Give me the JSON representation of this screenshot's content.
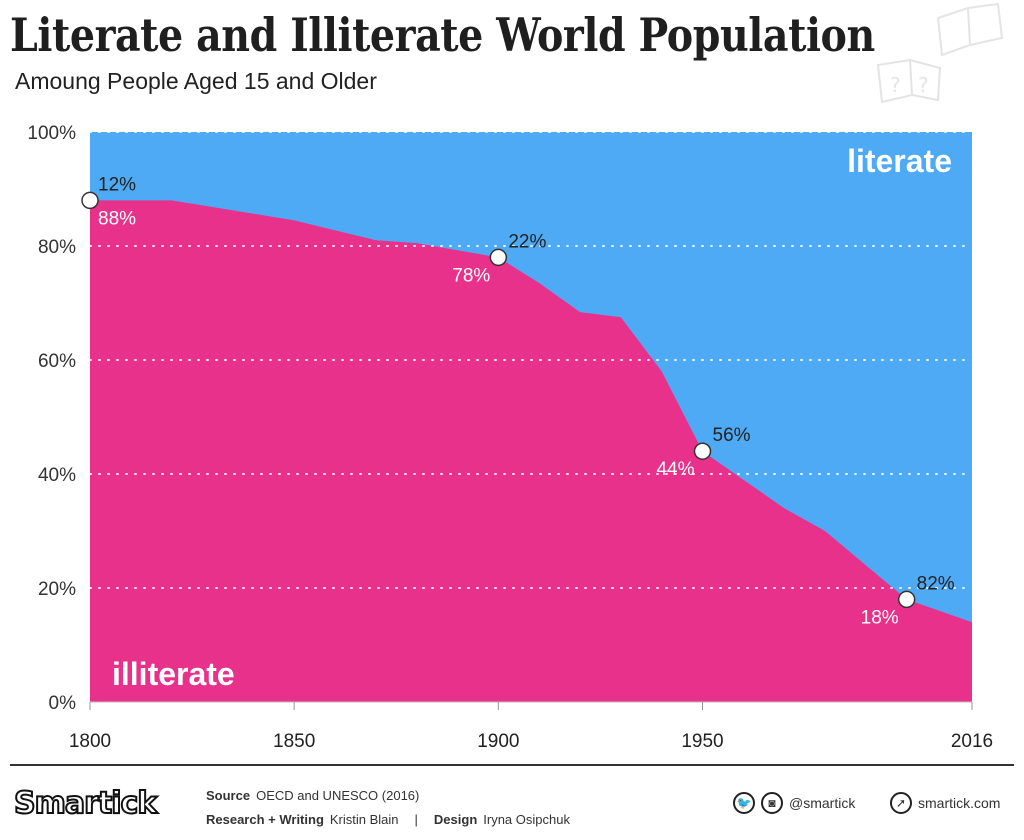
{
  "title": "Literate and Illiterate World Population",
  "subtitle": "Amoung People Aged 15 and Older",
  "chart_data": {
    "type": "area",
    "stacked": true,
    "x": [
      1800,
      1820,
      1850,
      1870,
      1880,
      1900,
      1910,
      1920,
      1930,
      1940,
      1950,
      1960,
      1970,
      1980,
      1990,
      2000,
      2016
    ],
    "series": [
      {
        "name": "illiterate",
        "color": "#e8318a",
        "values": [
          88,
          88,
          84.5,
          81,
          80.5,
          78,
          73.5,
          68.4,
          67.5,
          58,
          44,
          39,
          34,
          30,
          24,
          18,
          14
        ]
      },
      {
        "name": "literate",
        "color": "#4eaaf5",
        "values": [
          12,
          12,
          15.5,
          19,
          19.5,
          22,
          26.5,
          31.6,
          32.5,
          42,
          56,
          61,
          66,
          70,
          76,
          82,
          86
        ]
      }
    ],
    "xlim": [
      1800,
      2016
    ],
    "ylim": [
      0,
      100
    ],
    "x_ticks": [
      "1800",
      "1850",
      "1900",
      "1950",
      "2016"
    ],
    "y_ticks": [
      "0%",
      "20%",
      "40%",
      "60%",
      "80%",
      "100%"
    ],
    "grid": "horizontal dotted",
    "annotations": [
      {
        "x": 1800,
        "literate": "12%",
        "illiterate": "88%"
      },
      {
        "x": 1900,
        "literate": "22%",
        "illiterate": "78%"
      },
      {
        "x": 1950,
        "literate": "56%",
        "illiterate": "44%"
      },
      {
        "x": 2000,
        "literate": "82%",
        "illiterate": "18%"
      }
    ]
  },
  "footer": {
    "logo": "Smartick",
    "source_label": "Source",
    "source": "OECD and UNESCO (2016)",
    "research_label": "Research + Writing",
    "research": "Kristin Blain",
    "separator": "|",
    "design_label": "Design",
    "design": "Iryna Osipchuk",
    "social_handle": "@smartick",
    "website": "smartick.com",
    "icons": [
      "twitter-icon",
      "instagram-icon",
      "cursor-icon"
    ]
  }
}
